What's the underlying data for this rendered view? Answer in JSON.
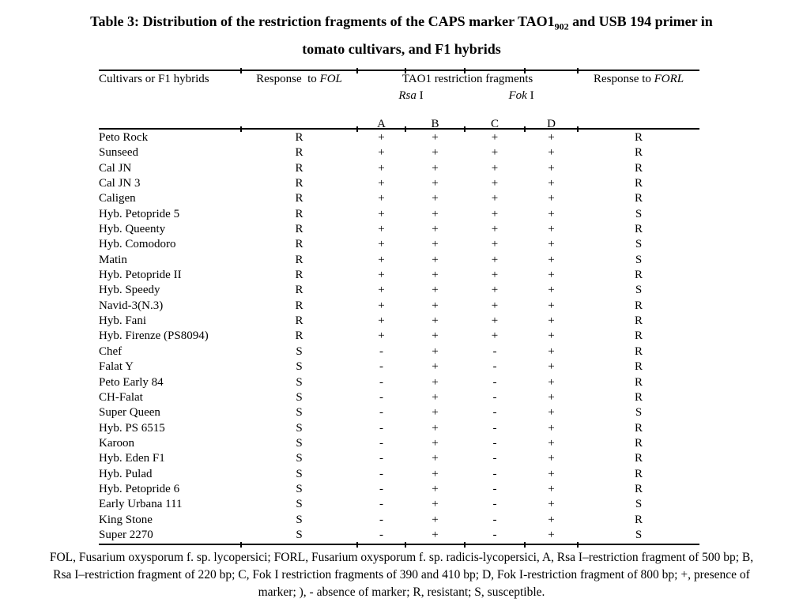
{
  "title": {
    "line1_pre": "Table 3: Distribution of the restriction fragments of the CAPS marker TAO1",
    "line1_sub": "902",
    "line1_post": " and USB 194 primer in",
    "line2": "tomato cultivars, and F1 hybrids"
  },
  "table": {
    "header": {
      "cultivar": "Cultivars or F1 hybrids",
      "fol_prefix": "Response  to ",
      "fol_italic": "FOL",
      "tao1_group": "TAO1 restriction fragments",
      "rsa_italic": "Rsa",
      "rsa_rest": " I",
      "fok_italic": "Fok",
      "fok_rest": " I",
      "frag_a": "A",
      "frag_b": "B",
      "frag_c": "C",
      "frag_d": "D",
      "forl_prefix": "Response to ",
      "forl_italic": "FORL"
    },
    "rows": [
      {
        "name": "Peto Rock",
        "fol": "R",
        "a": "+",
        "b": "+",
        "c": "+",
        "d": "+",
        "forl": "R"
      },
      {
        "name": "Sunseed",
        "fol": "R",
        "a": "+",
        "b": "+",
        "c": "+",
        "d": "+",
        "forl": "R"
      },
      {
        "name": "Cal JN",
        "fol": "R",
        "a": "+",
        "b": "+",
        "c": "+",
        "d": "+",
        "forl": "R"
      },
      {
        "name": "Cal JN 3",
        "fol": "R",
        "a": "+",
        "b": "+",
        "c": "+",
        "d": "+",
        "forl": "R"
      },
      {
        "name": "Caligen",
        "fol": "R",
        "a": "+",
        "b": "+",
        "c": "+",
        "d": "+",
        "forl": "R"
      },
      {
        "name": "Hyb. Petopride 5",
        "fol": "R",
        "a": "+",
        "b": "+",
        "c": "+",
        "d": "+",
        "forl": "S"
      },
      {
        "name": "Hyb. Queenty",
        "fol": "R",
        "a": "+",
        "b": "+",
        "c": "+",
        "d": "+",
        "forl": "R"
      },
      {
        "name": "Hyb. Comodoro",
        "fol": "R",
        "a": "+",
        "b": "+",
        "c": "+",
        "d": "+",
        "forl": "S"
      },
      {
        "name": "Matin",
        "fol": "R",
        "a": "+",
        "b": "+",
        "c": "+",
        "d": "+",
        "forl": "S"
      },
      {
        "name": "Hyb. Petopride II",
        "fol": "R",
        "a": "+",
        "b": "+",
        "c": "+",
        "d": "+",
        "forl": "R"
      },
      {
        "name": "Hyb. Speedy",
        "fol": "R",
        "a": "+",
        "b": "+",
        "c": "+",
        "d": "+",
        "forl": "S"
      },
      {
        "name": "Navid-3(N.3)",
        "fol": "R",
        "a": "+",
        "b": "+",
        "c": "+",
        "d": "+",
        "forl": "R"
      },
      {
        "name": "Hyb. Fani",
        "fol": "R",
        "a": "+",
        "b": "+",
        "c": "+",
        "d": "+",
        "forl": "R"
      },
      {
        "name": "Hyb. Firenze (PS8094)",
        "fol": "R",
        "a": "+",
        "b": "+",
        "c": "+",
        "d": "+",
        "forl": "R"
      },
      {
        "name": "Chef",
        "fol": "S",
        "a": "-",
        "b": "+",
        "c": "-",
        "d": "+",
        "forl": "R"
      },
      {
        "name": "Falat Y",
        "fol": "S",
        "a": "-",
        "b": "+",
        "c": "-",
        "d": "+",
        "forl": "R"
      },
      {
        "name": "Peto Early 84",
        "fol": "S",
        "a": "-",
        "b": "+",
        "c": "-",
        "d": "+",
        "forl": "R"
      },
      {
        "name": "CH-Falat",
        "fol": "S",
        "a": "-",
        "b": "+",
        "c": "-",
        "d": "+",
        "forl": "R"
      },
      {
        "name": "Super Queen",
        "fol": "S",
        "a": "-",
        "b": "+",
        "c": "-",
        "d": "+",
        "forl": "S"
      },
      {
        "name": "Hyb. PS 6515",
        "fol": "S",
        "a": "-",
        "b": "+",
        "c": "-",
        "d": "+",
        "forl": "R"
      },
      {
        "name": "Karoon",
        "fol": "S",
        "a": "-",
        "b": "+",
        "c": "-",
        "d": "+",
        "forl": "R"
      },
      {
        "name": "Hyb. Eden F1",
        "fol": "S",
        "a": "-",
        "b": "+",
        "c": "-",
        "d": "+",
        "forl": "R"
      },
      {
        "name": "Hyb. Pulad",
        "fol": "S",
        "a": "-",
        "b": "+",
        "c": "-",
        "d": "+",
        "forl": "R"
      },
      {
        "name": "Hyb. Petopride 6",
        "fol": "S",
        "a": "-",
        "b": "+",
        "c": "-",
        "d": "+",
        "forl": "R"
      },
      {
        "name": "Early Urbana 111",
        "fol": "S",
        "a": "-",
        "b": "+",
        "c": "-",
        "d": "+",
        "forl": "S"
      },
      {
        "name": "King Stone",
        "fol": "S",
        "a": "-",
        "b": "+",
        "c": "-",
        "d": "+",
        "forl": "R"
      },
      {
        "name": "Super 2270",
        "fol": "S",
        "a": "-",
        "b": "+",
        "c": "-",
        "d": "+",
        "forl": "S"
      }
    ]
  },
  "footnote": {
    "line1": "FOL, Fusarium oxysporum f. sp. lycopersici; FORL, Fusarium oxysporum f. sp. radicis-lycopersici, A, Rsa I–restriction fragment of 500 bp; B,",
    "line2": "Rsa I–restriction fragment of 220 bp; C, Fok I restriction fragments of 390 and 410 bp; D, Fok I-restriction fragment of 800 bp; +, presence of",
    "line3": "marker; ), - absence of marker; R, resistant; S, susceptible."
  },
  "colors": {
    "text": "#000000",
    "background": "#ffffff"
  }
}
